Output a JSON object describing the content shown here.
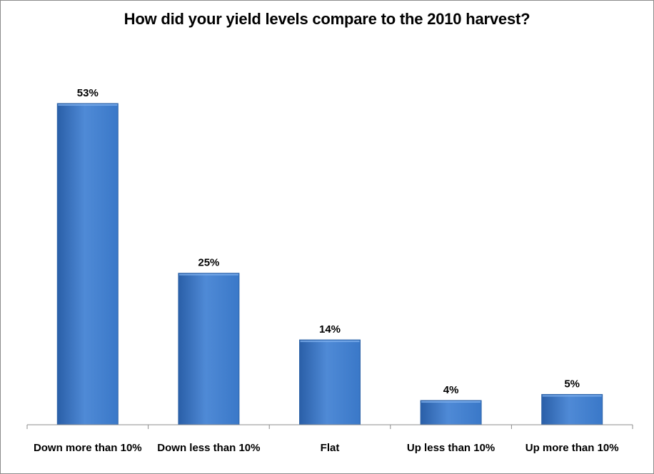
{
  "chart_data": {
    "type": "bar",
    "title": "How did your yield levels compare to the 2010 harvest?",
    "xlabel": "",
    "ylabel": "",
    "categories": [
      "Down more than 10%",
      "Down less than 10%",
      "Flat",
      "Up less than 10%",
      "Up more than 10%"
    ],
    "values": [
      53,
      25,
      14,
      4,
      5
    ],
    "data_labels": [
      "53%",
      "25%",
      "14%",
      "4%",
      "5%"
    ],
    "ylim": [
      0,
      53
    ],
    "grid": false,
    "legend": "none",
    "bar_color": "#3a78c8",
    "bar_color_dark": "#2a5fa8",
    "bar_color_light": "#4f8ad6"
  }
}
